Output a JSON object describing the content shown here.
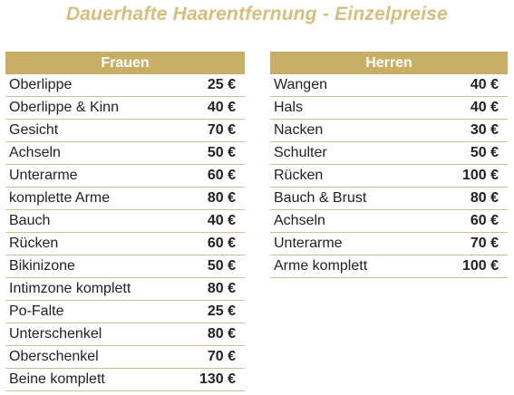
{
  "title": "Dauerhafte Haarentfernung - Einzelpreise",
  "colors": {
    "title": "#d6bf7c",
    "header_background": "#c9ae66",
    "row_divider": "#cfc08f"
  },
  "women": {
    "header": "Frauen",
    "rows": [
      {
        "name": "Oberlippe",
        "price": "25 €"
      },
      {
        "name": "Oberlippe & Kinn",
        "price": "40 €"
      },
      {
        "name": "Gesicht",
        "price": "70 €"
      },
      {
        "name": "Achseln",
        "price": "50 €"
      },
      {
        "name": "Unterarme",
        "price": "60 €"
      },
      {
        "name": "komplette Arme",
        "price": "80 €"
      },
      {
        "name": "Bauch",
        "price": "40 €"
      },
      {
        "name": "Rücken",
        "price": "60 €"
      },
      {
        "name": "Bikinizone",
        "price": "50 €"
      },
      {
        "name": "Intimzone komplett",
        "price": "80 €"
      },
      {
        "name": "Po-Falte",
        "price": "25 €"
      },
      {
        "name": "Unterschenkel",
        "price": "80 €"
      },
      {
        "name": "Oberschenkel",
        "price": "70 €"
      },
      {
        "name": "Beine komplett",
        "price": "130 €"
      }
    ]
  },
  "men": {
    "header": "Herren",
    "rows": [
      {
        "name": "Wangen",
        "price": "40 €"
      },
      {
        "name": "Hals",
        "price": "40 €"
      },
      {
        "name": "Nacken",
        "price": "30 €"
      },
      {
        "name": "Schulter",
        "price": "50 €"
      },
      {
        "name": "Rücken",
        "price": "100 €"
      },
      {
        "name": "Bauch & Brust",
        "price": "80 €"
      },
      {
        "name": "Achseln",
        "price": "60 €"
      },
      {
        "name": "Unterarme",
        "price": "70 €"
      },
      {
        "name": "Arme komplett",
        "price": "100 €"
      }
    ]
  }
}
